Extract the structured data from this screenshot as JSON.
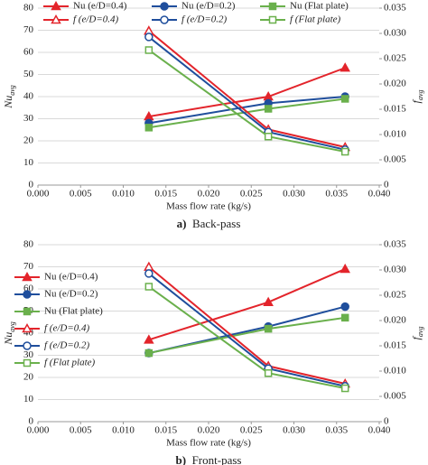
{
  "chart_data": [
    {
      "type": "line",
      "caption": {
        "label": "a)",
        "text": "Back-pass"
      },
      "x_label": "Mass flow rate (kg/s)",
      "y_label": {
        "main": "Nu",
        "sub": "avg"
      },
      "y2_label": {
        "main": "f",
        "sub": "avg"
      },
      "legend": "top",
      "x": [
        0.013,
        0.027,
        0.036
      ],
      "xlim": [
        0,
        0.04
      ],
      "xticks": [
        {
          "value": 0,
          "label": "0.000"
        },
        0.005,
        {
          "value": 0.01,
          "label": "0.010"
        },
        0.015,
        {
          "value": 0.02,
          "label": "0.020"
        },
        0.025,
        {
          "value": 0.03,
          "label": "0.030"
        },
        0.035,
        {
          "value": 0.04,
          "label": "0.040"
        }
      ],
      "ylim": [
        0,
        80
      ],
      "yticks": [
        0,
        10,
        20,
        30,
        40,
        50,
        60,
        70,
        80
      ],
      "y2lim": [
        0,
        0.035
      ],
      "y2ticks": [
        0,
        0.005,
        {
          "value": 0.01,
          "label": "0.010"
        },
        0.015,
        {
          "value": 0.02,
          "label": "0.020"
        },
        0.025,
        {
          "value": 0.03,
          "label": "0.030"
        },
        0.035
      ],
      "series": [
        {
          "name": "Nu (e/D=0.4)",
          "color": "#e3242b",
          "marker": "triangle",
          "filled": true,
          "italic": false,
          "values": [
            31,
            40,
            53
          ]
        },
        {
          "name": "Nu (e/D=0.2)",
          "color": "#1f4e9c",
          "marker": "circle",
          "filled": true,
          "italic": false,
          "values": [
            28,
            37,
            40
          ]
        },
        {
          "name": "Nu (Flat plate)",
          "color": "#6ab04c",
          "marker": "square",
          "filled": true,
          "italic": false,
          "values": [
            26,
            34.5,
            39
          ]
        },
        {
          "name": "f (e/D=0.4)",
          "color": "#e3242b",
          "marker": "triangle",
          "filled": false,
          "italic": true,
          "axis": "y2",
          "values": [
            0.0305,
            0.011,
            0.0075
          ]
        },
        {
          "name": "f (e/D=0.2)",
          "color": "#1f4e9c",
          "marker": "circle",
          "filled": false,
          "italic": true,
          "axis": "y2",
          "values": [
            0.0293,
            0.0105,
            0.007
          ]
        },
        {
          "name": "f (Flat plate)",
          "color": "#6ab04c",
          "marker": "square",
          "filled": false,
          "italic": true,
          "axis": "y2",
          "values": [
            0.0267,
            0.0096,
            0.0066
          ]
        }
      ]
    },
    {
      "type": "line",
      "caption": {
        "label": "b)",
        "text": "Front-pass"
      },
      "x_label": "Mass flow rate (kg/s)",
      "y_label": {
        "main": "Nu",
        "sub": "avg"
      },
      "y2_label": {
        "main": "f",
        "sub": "avg"
      },
      "legend": "left",
      "x": [
        0.013,
        0.027,
        0.036
      ],
      "xlim": [
        0,
        0.04
      ],
      "xticks": [
        {
          "value": 0,
          "label": "0.000"
        },
        0.005,
        {
          "value": 0.01,
          "label": "0.010"
        },
        0.015,
        {
          "value": 0.02,
          "label": "0.020"
        },
        0.025,
        {
          "value": 0.03,
          "label": "0.030"
        },
        0.035,
        {
          "value": 0.04,
          "label": "0.040"
        }
      ],
      "ylim": [
        0,
        80
      ],
      "yticks": [
        0,
        10,
        20,
        30,
        40,
        50,
        60,
        70,
        80
      ],
      "y2lim": [
        0,
        0.035
      ],
      "y2ticks": [
        0,
        0.005,
        {
          "value": 0.01,
          "label": "0.010"
        },
        0.015,
        {
          "value": 0.02,
          "label": "0.020"
        },
        0.025,
        {
          "value": 0.03,
          "label": "0.030"
        },
        0.035
      ],
      "series": [
        {
          "name": "Nu (e/D=0.4)",
          "color": "#e3242b",
          "marker": "triangle",
          "filled": true,
          "italic": false,
          "values": [
            37,
            54,
            69
          ]
        },
        {
          "name": "Nu (e/D=0.2)",
          "color": "#1f4e9c",
          "marker": "circle",
          "filled": true,
          "italic": false,
          "values": [
            31,
            43,
            52
          ]
        },
        {
          "name": "Nu (Flat plate)",
          "color": "#6ab04c",
          "marker": "square",
          "filled": true,
          "italic": false,
          "values": [
            31,
            42,
            47
          ]
        },
        {
          "name": "f (e/D=0.4)",
          "color": "#e3242b",
          "marker": "triangle",
          "filled": false,
          "italic": true,
          "axis": "y2",
          "values": [
            0.0306,
            0.011,
            0.0075
          ]
        },
        {
          "name": "f (e/D=0.2)",
          "color": "#1f4e9c",
          "marker": "circle",
          "filled": false,
          "italic": true,
          "axis": "y2",
          "values": [
            0.0293,
            0.0105,
            0.007
          ]
        },
        {
          "name": "f (Flat plate)",
          "color": "#6ab04c",
          "marker": "square",
          "filled": false,
          "italic": true,
          "axis": "y2",
          "values": [
            0.0267,
            0.0096,
            0.0066
          ]
        }
      ]
    }
  ]
}
